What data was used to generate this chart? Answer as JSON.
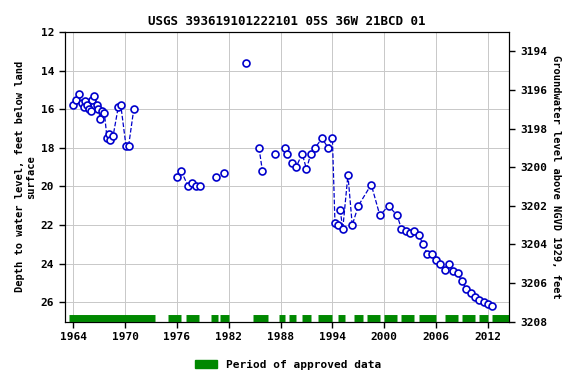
{
  "title": "USGS 393619101222101 05S 36W 21BCD 01",
  "ylabel_left": "Depth to water level, feet below land\nsurface",
  "ylabel_right": "Groundwater level above NGVD 1929, feet",
  "legend_label": "Period of approved data",
  "ylim_left": [
    12,
    27
  ],
  "ylim_right": [
    3208,
    3193
  ],
  "xlim": [
    1963.0,
    2014.5
  ],
  "xticks": [
    1964,
    1970,
    1976,
    1982,
    1988,
    1994,
    2000,
    2006,
    2012
  ],
  "yticks_left": [
    12,
    14,
    16,
    18,
    20,
    22,
    24,
    26
  ],
  "yticks_right": [
    3208,
    3206,
    3204,
    3202,
    3200,
    3198,
    3196,
    3194
  ],
  "segments": [
    [
      [
        1964.0,
        15.8
      ],
      [
        1964.3,
        15.5
      ],
      [
        1964.6,
        15.2
      ],
      [
        1965.0,
        15.7
      ],
      [
        1965.2,
        15.9
      ],
      [
        1965.4,
        15.6
      ],
      [
        1965.6,
        15.8
      ],
      [
        1965.8,
        16.0
      ],
      [
        1966.0,
        16.1
      ],
      [
        1966.2,
        15.5
      ],
      [
        1966.4,
        15.3
      ],
      [
        1966.7,
        15.8
      ],
      [
        1966.9,
        16.0
      ],
      [
        1967.1,
        16.5
      ],
      [
        1967.3,
        16.1
      ],
      [
        1967.6,
        16.2
      ],
      [
        1967.9,
        17.5
      ],
      [
        1968.1,
        17.3
      ],
      [
        1968.3,
        17.6
      ],
      [
        1968.6,
        17.4
      ],
      [
        1969.2,
        15.9
      ],
      [
        1969.5,
        15.8
      ],
      [
        1970.1,
        17.9
      ],
      [
        1970.4,
        17.9
      ],
      [
        1971.0,
        16.0
      ]
    ],
    [
      [
        1976.0,
        19.5
      ],
      [
        1976.5,
        19.2
      ],
      [
        1977.3,
        20.0
      ],
      [
        1977.8,
        19.8
      ],
      [
        1978.2,
        20.0
      ],
      [
        1978.7,
        20.0
      ]
    ],
    [
      [
        1980.5,
        19.5
      ]
    ],
    [
      [
        1981.5,
        19.3
      ]
    ],
    [
      [
        1984.0,
        13.6
      ]
    ],
    [
      [
        1985.5,
        18.0
      ],
      [
        1985.9,
        19.2
      ]
    ],
    [
      [
        1987.3,
        18.3
      ]
    ],
    [
      [
        1988.5,
        18.0
      ],
      [
        1988.7,
        18.3
      ],
      [
        1989.3,
        18.8
      ],
      [
        1989.8,
        19.0
      ],
      [
        1990.5,
        18.3
      ],
      [
        1991.0,
        19.1
      ],
      [
        1991.5,
        18.3
      ],
      [
        1992.0,
        18.0
      ],
      [
        1992.8,
        17.5
      ],
      [
        1993.5,
        18.0
      ],
      [
        1994.0,
        17.5
      ],
      [
        1994.3,
        21.9
      ],
      [
        1994.6,
        22.0
      ]
    ],
    [
      [
        1994.9,
        21.2
      ],
      [
        1995.2,
        22.2
      ],
      [
        1995.8,
        19.4
      ],
      [
        1996.3,
        22.0
      ],
      [
        1997.0,
        21.0
      ],
      [
        1998.5,
        19.9
      ],
      [
        1999.5,
        21.5
      ],
      [
        2000.5,
        21.0
      ],
      [
        2001.5,
        21.5
      ],
      [
        2002.0,
        22.2
      ],
      [
        2002.5,
        22.3
      ],
      [
        2003.0,
        22.4
      ],
      [
        2003.5,
        22.3
      ],
      [
        2004.0,
        22.5
      ],
      [
        2004.5,
        23.0
      ],
      [
        2005.0,
        23.5
      ],
      [
        2005.5,
        23.5
      ],
      [
        2006.0,
        23.8
      ],
      [
        2006.5,
        24.0
      ],
      [
        2007.0,
        24.3
      ],
      [
        2007.5,
        24.0
      ],
      [
        2008.0,
        24.4
      ],
      [
        2008.5,
        24.5
      ],
      [
        2009.0,
        24.9
      ],
      [
        2009.5,
        25.3
      ],
      [
        2010.0,
        25.5
      ],
      [
        2010.5,
        25.7
      ],
      [
        2011.0,
        25.9
      ],
      [
        2011.5,
        26.0
      ],
      [
        2012.0,
        26.1
      ],
      [
        2012.5,
        26.2
      ]
    ]
  ],
  "approved_periods": [
    [
      1963.5,
      1973.5
    ],
    [
      1975.0,
      1976.5
    ],
    [
      1977.0,
      1978.5
    ],
    [
      1980.0,
      1980.8
    ],
    [
      1981.0,
      1982.0
    ],
    [
      1984.8,
      1986.5
    ],
    [
      1987.8,
      1988.5
    ],
    [
      1989.0,
      1989.8
    ],
    [
      1990.5,
      1991.5
    ],
    [
      1992.3,
      1994.0
    ],
    [
      1994.6,
      1995.5
    ],
    [
      1996.5,
      1997.5
    ],
    [
      1998.0,
      1999.5
    ],
    [
      2000.0,
      2001.5
    ],
    [
      2002.0,
      2003.5
    ],
    [
      2004.0,
      2006.0
    ],
    [
      2007.0,
      2008.5
    ],
    [
      2009.0,
      2010.5
    ],
    [
      2011.0,
      2012.0
    ],
    [
      2012.5,
      2014.5
    ]
  ],
  "line_color": "#0000cc",
  "marker_facecolor": "#ffffff",
  "marker_edgecolor": "#0000cc",
  "grid_color": "#c8c8c8",
  "approved_color": "#008800",
  "bg_color": "#ffffff",
  "bar_y": 26.8,
  "bar_half_height": 0.22
}
